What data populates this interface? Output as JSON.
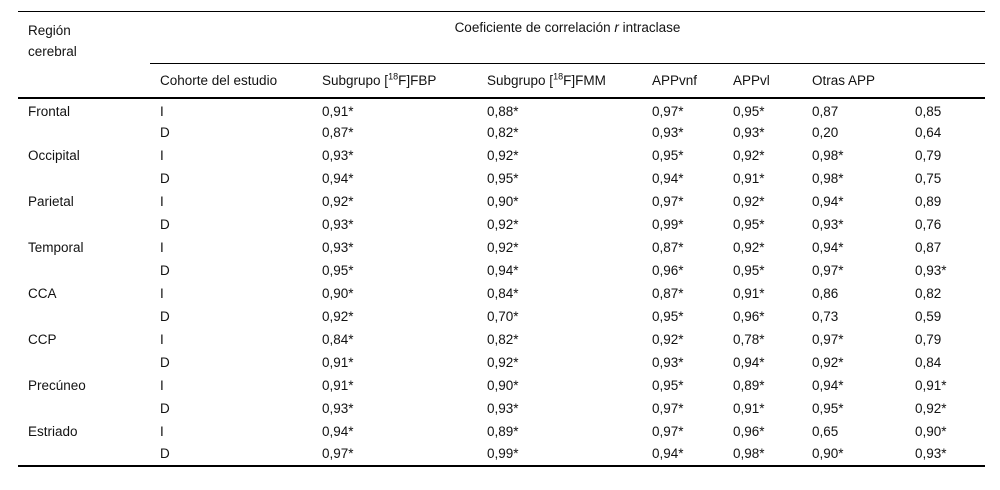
{
  "colors": {
    "text": "#121212",
    "rule": "#000000",
    "background": "#ffffff"
  },
  "table": {
    "headers": {
      "region_line1": "Región",
      "region_line2": "cerebral",
      "main_prefix": "Coeficiente de correlación ",
      "main_italic": "r",
      "main_suffix": " intraclase",
      "cohort": "Cohorte del estudio",
      "subgroup_prefix": "Subgrupo [",
      "isotope_sup": "18",
      "fbp_suffix": "F]FBP",
      "fmm_suffix": "F]FMM",
      "appvnf": "APPvnf",
      "appvl": "APPvl",
      "otras": "Otras APP"
    },
    "rows": [
      {
        "region": "Frontal",
        "cohort": "I",
        "values": [
          "0,91*",
          "0,88*",
          "0,97*",
          "0,95*",
          "0,87",
          "0,85"
        ]
      },
      {
        "region": "",
        "cohort": "D",
        "values": [
          "0,87*",
          "0,82*",
          "0,93*",
          "0,93*",
          "0,20",
          "0,64"
        ]
      },
      {
        "region": "Occipital",
        "cohort": "I",
        "values": [
          "0,93*",
          "0,92*",
          "0,95*",
          "0,92*",
          "0,98*",
          "0,79"
        ]
      },
      {
        "region": "",
        "cohort": "D",
        "values": [
          "0,94*",
          "0,95*",
          "0,94*",
          "0,91*",
          "0,98*",
          "0,75"
        ]
      },
      {
        "region": "Parietal",
        "cohort": "I",
        "values": [
          "0,92*",
          "0,90*",
          "0,97*",
          "0,92*",
          "0,94*",
          "0,89"
        ]
      },
      {
        "region": "",
        "cohort": "D",
        "values": [
          "0,93*",
          "0,92*",
          "0,99*",
          "0,95*",
          "0,93*",
          "0,76"
        ]
      },
      {
        "region": "Temporal",
        "cohort": "I",
        "values": [
          "0,93*",
          "0,92*",
          "0,87*",
          "0,92*",
          "0,94*",
          "0,87"
        ]
      },
      {
        "region": "",
        "cohort": "D",
        "values": [
          "0,95*",
          "0,94*",
          "0,96*",
          "0,95*",
          "0,97*",
          "0,93*"
        ]
      },
      {
        "region": "CCA",
        "cohort": "I",
        "values": [
          "0,90*",
          "0,84*",
          "0,87*",
          "0,91*",
          "0,86",
          "0,82"
        ]
      },
      {
        "region": "",
        "cohort": "D",
        "values": [
          "0,92*",
          "0,70*",
          "0,95*",
          "0,96*",
          "0,73",
          "0,59"
        ]
      },
      {
        "region": "CCP",
        "cohort": "I",
        "values": [
          "0,84*",
          "0,82*",
          "0,92*",
          "0,78*",
          "0,97*",
          "0,79"
        ]
      },
      {
        "region": "",
        "cohort": "D",
        "values": [
          "0,91*",
          "0,92*",
          "0,93*",
          "0,94*",
          "0,92*",
          "0,84"
        ]
      },
      {
        "region": "Precúneo",
        "cohort": "I",
        "values": [
          "0,91*",
          "0,90*",
          "0,95*",
          "0,89*",
          "0,94*",
          "0,91*"
        ]
      },
      {
        "region": "",
        "cohort": "D",
        "values": [
          "0,93*",
          "0,93*",
          "0,97*",
          "0,91*",
          "0,95*",
          "0,92*"
        ]
      },
      {
        "region": "Estriado",
        "cohort": "I",
        "values": [
          "0,94*",
          "0,89*",
          "0,97*",
          "0,96*",
          "0,65",
          "0,90*"
        ]
      },
      {
        "region": "",
        "cohort": "D",
        "values": [
          "0,97*",
          "0,99*",
          "0,94*",
          "0,98*",
          "0,90*",
          "0,93*"
        ]
      }
    ]
  }
}
